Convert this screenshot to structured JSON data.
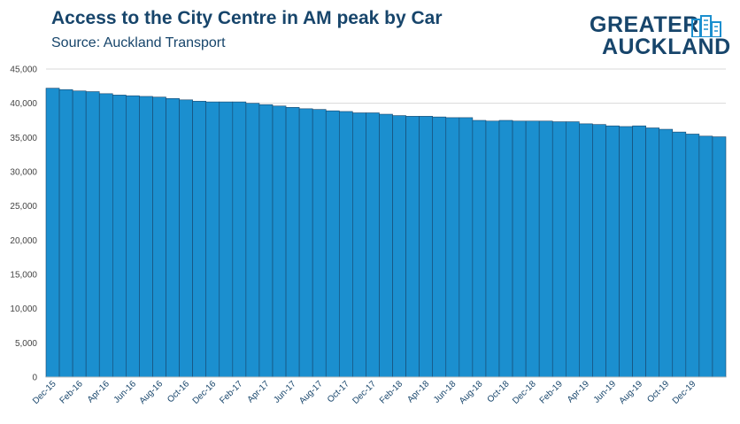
{
  "header": {
    "title": "Access to the City Centre in AM peak by Car",
    "subtitle": "Source: Auckland Transport"
  },
  "logo": {
    "line1": "GREATER",
    "line2": "AUCKLAND",
    "color": "#17456b"
  },
  "chart_data": {
    "type": "bar",
    "title": "Access to the City Centre in AM peak by Car",
    "xlabel": "",
    "ylabel": "",
    "ylim": [
      0,
      45000
    ],
    "yticks": [
      0,
      5000,
      10000,
      15000,
      20000,
      25000,
      30000,
      35000,
      40000,
      45000
    ],
    "ytick_labels": [
      "0",
      "5,000",
      "10,000",
      "15,000",
      "20,000",
      "25,000",
      "30,000",
      "35,000",
      "40,000",
      "45,000"
    ],
    "grid": true,
    "bar_color": "#1b8fcf",
    "bar_edge_color": "#17456b",
    "categories": [
      "Dec-15",
      "Jan-16",
      "Feb-16",
      "Mar-16",
      "Apr-16",
      "May-16",
      "Jun-16",
      "Jul-16",
      "Aug-16",
      "Sep-16",
      "Oct-16",
      "Nov-16",
      "Dec-16",
      "Jan-17",
      "Feb-17",
      "Mar-17",
      "Apr-17",
      "May-17",
      "Jun-17",
      "Jul-17",
      "Aug-17",
      "Sep-17",
      "Oct-17",
      "Nov-17",
      "Dec-17",
      "Jan-18",
      "Feb-18",
      "Mar-18",
      "Apr-18",
      "May-18",
      "Jun-18",
      "Jul-18",
      "Aug-18",
      "Sep-18",
      "Oct-18",
      "Nov-18",
      "Dec-18",
      "Jan-19",
      "Feb-19",
      "Mar-19",
      "Apr-19",
      "May-19",
      "Jun-19",
      "Jul-19",
      "Aug-19",
      "Sep-19",
      "Oct-19",
      "Nov-19",
      "Dec-19",
      "Jan-20",
      "Feb-20"
    ],
    "x_tick_labels": [
      "Dec-15",
      "",
      "Feb-16",
      "",
      "Apr-16",
      "",
      "Jun-16",
      "",
      "Aug-16",
      "",
      "Oct-16",
      "",
      "Dec-16",
      "",
      "Feb-17",
      "",
      "Apr-17",
      "",
      "Jun-17",
      "",
      "Aug-17",
      "",
      "Oct-17",
      "",
      "Dec-17",
      "",
      "Feb-18",
      "",
      "Apr-18",
      "",
      "Jun-18",
      "",
      "Aug-18",
      "",
      "Oct-18",
      "",
      "Dec-18",
      "",
      "Feb-19",
      "",
      "Apr-19",
      "",
      "Jun-19",
      "",
      "Aug-19",
      "",
      "Oct-19",
      "",
      "Dec-19",
      "",
      ""
    ],
    "values": [
      42200,
      42000,
      41800,
      41700,
      41400,
      41200,
      41100,
      41000,
      40900,
      40700,
      40500,
      40300,
      40200,
      40200,
      40200,
      40000,
      39800,
      39600,
      39400,
      39200,
      39100,
      38900,
      38800,
      38600,
      38600,
      38400,
      38200,
      38100,
      38100,
      38000,
      37900,
      37900,
      37500,
      37400,
      37500,
      37400,
      37400,
      37400,
      37300,
      37300,
      37000,
      36900,
      36700,
      36600,
      36700,
      36400,
      36200,
      35800,
      35500,
      35200,
      35100
    ]
  }
}
